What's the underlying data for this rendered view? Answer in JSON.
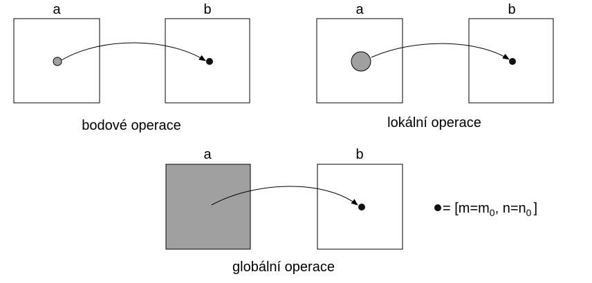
{
  "panels": {
    "point": {
      "label_a": "a",
      "label_b": "b",
      "caption": "bodové operace"
    },
    "local": {
      "label_a": "a",
      "label_b": "b",
      "caption": "lokální operace"
    },
    "global": {
      "label_a": "a",
      "label_b": "b",
      "caption": "globální operace"
    }
  },
  "legend": {
    "prefix": " = [m=m",
    "sub1": "0",
    "middle": ", n=n",
    "sub2": "0",
    "suffix": "]"
  },
  "colors": {
    "gray_fill": "#a0a0a0",
    "point_fill": "#111111",
    "line": "#000000"
  }
}
